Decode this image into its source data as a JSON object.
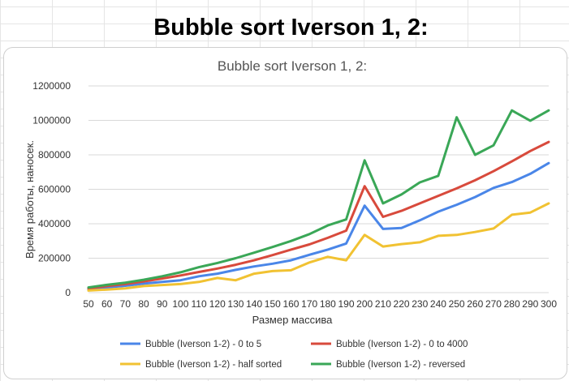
{
  "page": {
    "heading": "Bubble sort Iverson 1, 2:"
  },
  "colors": {
    "blue": "#4a86e8",
    "red": "#d84a3c",
    "yellow": "#f1c232",
    "green": "#3aa757",
    "grid": "#d9d9d9"
  },
  "chart_data": {
    "type": "line",
    "title": "Bubble sort Iverson 1, 2:",
    "xlabel": "Размер массива",
    "ylabel": "Время работы,  наносек.",
    "ylim": [
      0,
      1200000
    ],
    "yticks": [
      0,
      200000,
      400000,
      600000,
      800000,
      1000000,
      1200000
    ],
    "grid": true,
    "legend_position": "bottom",
    "categories": [
      50,
      60,
      70,
      80,
      90,
      100,
      110,
      120,
      130,
      140,
      150,
      160,
      170,
      180,
      190,
      200,
      210,
      220,
      230,
      240,
      250,
      260,
      270,
      280,
      290,
      300
    ],
    "series": [
      {
        "name": "Bubble (Iverson 1-2) - 0 to 5",
        "color": "#4a86e8",
        "values": [
          20000,
          30000,
          40000,
          52000,
          62000,
          72000,
          95000,
          110000,
          132000,
          152000,
          168000,
          188000,
          220000,
          250000,
          285000,
          505000,
          370000,
          375000,
          420000,
          470000,
          510000,
          555000,
          608000,
          642000,
          690000,
          752000
        ]
      },
      {
        "name": "Bubble (Iverson 1-2) - 0 to 4000",
        "color": "#d84a3c",
        "values": [
          25000,
          38000,
          50000,
          65000,
          82000,
          100000,
          120000,
          140000,
          162000,
          188000,
          218000,
          250000,
          280000,
          318000,
          360000,
          618000,
          440000,
          475000,
          518000,
          562000,
          605000,
          652000,
          705000,
          762000,
          822000,
          875000
        ]
      },
      {
        "name": "Bubble (Iverson 1-2) - half sorted",
        "color": "#f1c232",
        "values": [
          12000,
          18000,
          25000,
          38000,
          44000,
          50000,
          62000,
          85000,
          72000,
          110000,
          125000,
          130000,
          175000,
          208000,
          188000,
          335000,
          268000,
          282000,
          292000,
          330000,
          335000,
          352000,
          372000,
          452000,
          465000,
          518000
        ]
      },
      {
        "name": "Bubble (Iverson 1-2) - reversed",
        "color": "#3aa757",
        "values": [
          30000,
          45000,
          58000,
          75000,
          95000,
          118000,
          148000,
          172000,
          200000,
          232000,
          265000,
          300000,
          340000,
          390000,
          425000,
          768000,
          518000,
          570000,
          640000,
          678000,
          1018000,
          800000,
          855000,
          1058000,
          998000,
          1058000
        ]
      }
    ]
  }
}
